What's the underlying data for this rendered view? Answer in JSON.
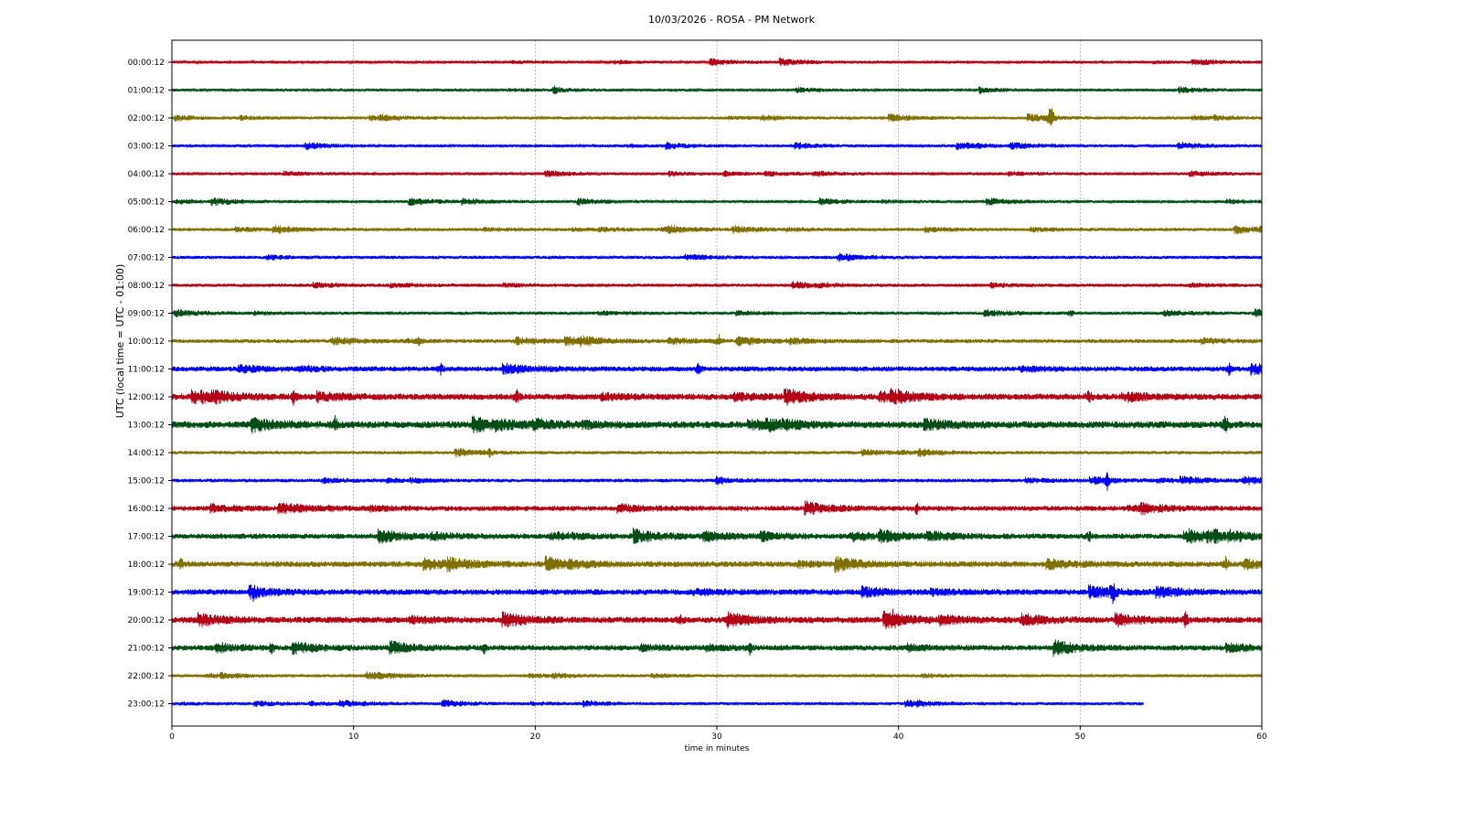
{
  "chart_data": {
    "type": "line",
    "title": "10/03/2026 - ROSA - PM Network",
    "xlabel": "time in minutes",
    "ylabel": "UTC (local time = UTC - 01:00)",
    "xlim": [
      0,
      60
    ],
    "x_ticks": [
      0,
      10,
      20,
      30,
      40,
      50,
      60
    ],
    "grid": "vertical",
    "colors": [
      "#b30016",
      "#004d16",
      "#807000",
      "#0000ff"
    ],
    "series": [
      {
        "label": "00:00:12",
        "color": "#b30016",
        "end": 60,
        "amp": 1.5,
        "events": []
      },
      {
        "label": "01:00:12",
        "color": "#004d16",
        "end": 60,
        "amp": 1.6,
        "events": []
      },
      {
        "label": "02:00:12",
        "color": "#807000",
        "end": 60,
        "amp": 1.6,
        "events": [
          {
            "t": 48.4,
            "a": 20
          }
        ]
      },
      {
        "label": "03:00:12",
        "color": "#0000ff",
        "end": 60,
        "amp": 1.6,
        "events": []
      },
      {
        "label": "04:00:12",
        "color": "#b30016",
        "end": 60,
        "amp": 1.6,
        "events": []
      },
      {
        "label": "05:00:12",
        "color": "#004d16",
        "end": 60,
        "amp": 1.6,
        "events": []
      },
      {
        "label": "06:00:12",
        "color": "#807000",
        "end": 60,
        "amp": 1.8,
        "events": []
      },
      {
        "label": "07:00:12",
        "color": "#0000ff",
        "end": 60,
        "amp": 1.8,
        "events": []
      },
      {
        "label": "08:00:12",
        "color": "#b30016",
        "end": 60,
        "amp": 1.8,
        "events": []
      },
      {
        "label": "09:00:12",
        "color": "#004d16",
        "end": 60,
        "amp": 1.8,
        "events": [
          {
            "t": 49.5,
            "a": 4
          }
        ]
      },
      {
        "label": "10:00:12",
        "color": "#807000",
        "end": 60,
        "amp": 2.2,
        "events": [
          {
            "t": 30.1,
            "a": 7
          },
          {
            "t": 13.6,
            "a": 5
          }
        ]
      },
      {
        "label": "11:00:12",
        "color": "#0000ff",
        "end": 60,
        "amp": 2.8,
        "events": [
          {
            "t": 14.8,
            "a": 6
          },
          {
            "t": 29,
            "a": 6
          },
          {
            "t": 58.2,
            "a": 6
          }
        ]
      },
      {
        "label": "12:00:12",
        "color": "#b30016",
        "end": 60,
        "amp": 3.4,
        "events": [
          {
            "t": 6.7,
            "a": 7
          },
          {
            "t": 19,
            "a": 7
          },
          {
            "t": 50.5,
            "a": 7
          }
        ]
      },
      {
        "label": "13:00:12",
        "color": "#004d16",
        "end": 60,
        "amp": 3.8,
        "events": [
          {
            "t": 9,
            "a": 8
          },
          {
            "t": 58,
            "a": 12
          }
        ]
      },
      {
        "label": "14:00:12",
        "color": "#807000",
        "end": 60,
        "amp": 1.8,
        "events": [
          {
            "t": 17.5,
            "a": 4
          }
        ]
      },
      {
        "label": "15:00:12",
        "color": "#0000ff",
        "end": 60,
        "amp": 2.0,
        "events": [
          {
            "t": 51.5,
            "a": 9
          }
        ]
      },
      {
        "label": "16:00:12",
        "color": "#b30016",
        "end": 60,
        "amp": 2.8,
        "events": [
          {
            "t": 41,
            "a": 6
          }
        ]
      },
      {
        "label": "17:00:12",
        "color": "#004d16",
        "end": 60,
        "amp": 3.0,
        "events": [
          {
            "t": 50.5,
            "a": 5
          },
          {
            "t": 57.5,
            "a": 5
          }
        ]
      },
      {
        "label": "18:00:12",
        "color": "#807000",
        "end": 60,
        "amp": 3.2,
        "events": [
          {
            "t": 58,
            "a": 7
          },
          {
            "t": 0.5,
            "a": 5
          }
        ]
      },
      {
        "label": "19:00:12",
        "color": "#0000ff",
        "end": 60,
        "amp": 3.2,
        "events": [
          {
            "t": 51.8,
            "a": 11
          },
          {
            "t": 4.5,
            "a": 5
          }
        ]
      },
      {
        "label": "20:00:12",
        "color": "#b30016",
        "end": 60,
        "amp": 3.4,
        "events": [
          {
            "t": 28,
            "a": 6
          },
          {
            "t": 55.8,
            "a": 8
          },
          {
            "t": 39.7,
            "a": 7
          }
        ]
      },
      {
        "label": "21:00:12",
        "color": "#004d16",
        "end": 60,
        "amp": 3.0,
        "events": [
          {
            "t": 2.5,
            "a": 6
          },
          {
            "t": 5.5,
            "a": 6
          },
          {
            "t": 17.2,
            "a": 6
          },
          {
            "t": 31.8,
            "a": 6
          }
        ]
      },
      {
        "label": "22:00:12",
        "color": "#807000",
        "end": 60,
        "amp": 1.6,
        "events": []
      },
      {
        "label": "23:00:12",
        "color": "#0000ff",
        "end": 53.5,
        "amp": 1.6,
        "events": []
      }
    ]
  }
}
